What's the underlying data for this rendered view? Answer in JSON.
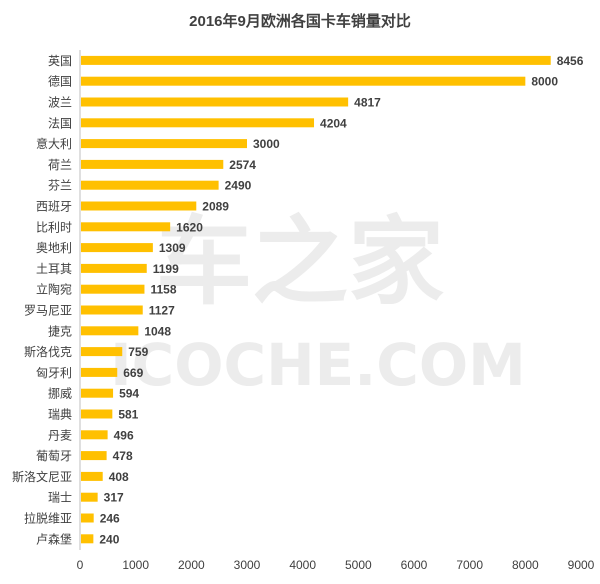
{
  "chart_data": {
    "type": "bar",
    "orientation": "horizontal",
    "title": "2016年9月欧洲各国卡车销量对比",
    "categories": [
      "英国",
      "德国",
      "波兰",
      "法国",
      "意大利",
      "荷兰",
      "芬兰",
      "西班牙",
      "比利时",
      "奥地利",
      "土耳其",
      "立陶宛",
      "罗马尼亚",
      "捷克",
      "斯洛伐克",
      "匈牙利",
      "挪威",
      "瑞典",
      "丹麦",
      "葡萄牙",
      "斯洛文尼亚",
      "瑞士",
      "拉脱维亚",
      "卢森堡"
    ],
    "values": [
      8456,
      8000,
      4817,
      4204,
      3000,
      2574,
      2490,
      2089,
      1620,
      1309,
      1199,
      1158,
      1127,
      1048,
      759,
      669,
      594,
      581,
      496,
      478,
      408,
      317,
      246,
      240
    ],
    "xlim": [
      0,
      9000
    ],
    "xticks": [
      0,
      1000,
      2000,
      3000,
      4000,
      5000,
      6000,
      7000,
      8000,
      9000
    ],
    "grid": false,
    "legend": "none",
    "bar_color": "#FFC000",
    "text_color": "#404040",
    "axis_color": "#bfbfbf"
  },
  "watermark": {
    "line1": "车之家",
    "line2": "ICOCHE.COM"
  }
}
